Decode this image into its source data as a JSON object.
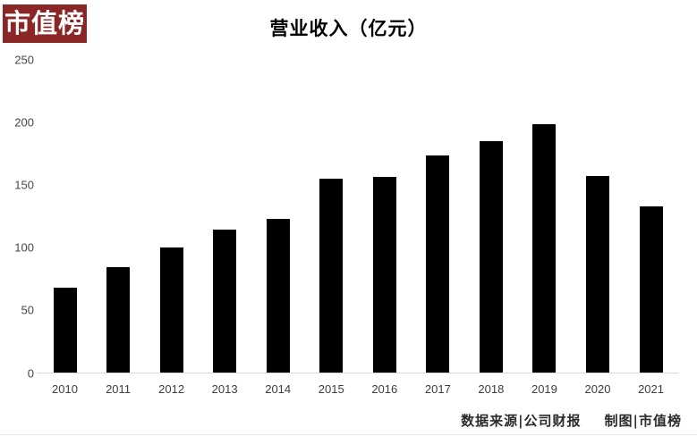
{
  "brand": {
    "logo_text": "市值榜",
    "logo_bg_color": "#8A2726"
  },
  "chart_data": {
    "type": "bar",
    "title": "营业收入（亿元）",
    "categories": [
      "2010",
      "2011",
      "2012",
      "2013",
      "2014",
      "2015",
      "2016",
      "2017",
      "2018",
      "2019",
      "2020",
      "2021"
    ],
    "values": [
      68,
      84,
      100,
      114,
      123,
      155,
      156,
      173,
      185,
      198,
      157,
      133
    ],
    "xlabel": "",
    "ylabel": "",
    "ylim": [
      0,
      250
    ],
    "yticks": [
      0,
      50,
      100,
      150,
      200,
      250
    ],
    "bar_color": "#000000",
    "grid": false,
    "legend_position": "none"
  },
  "footer": {
    "source_label": "数据来源|公司财报",
    "credit_label": "制图|市值榜"
  }
}
